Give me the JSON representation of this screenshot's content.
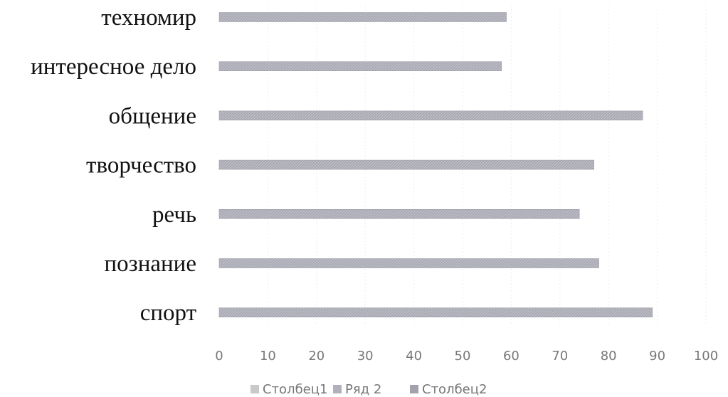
{
  "chart_data": {
    "type": "bar",
    "orientation": "horizontal",
    "title": "",
    "xlabel": "",
    "ylabel": "",
    "categories": [
      "техномир",
      "интересное дело",
      "общение",
      "творчество",
      "речь",
      "познание",
      "спорт"
    ],
    "series": [
      {
        "name": "Ряд 2",
        "color": "#a9a9b4",
        "values": [
          59,
          58,
          87,
          77,
          74,
          78,
          89
        ]
      }
    ],
    "xlim": [
      0,
      100
    ],
    "xticks": [
      "0",
      "10",
      "20",
      "30",
      "40",
      "50",
      "60",
      "70",
      "80",
      "90",
      "100"
    ],
    "grid": true,
    "legend": {
      "position": "bottom",
      "entries": [
        {
          "name": "Столбец1",
          "color": "#c9c9c9"
        },
        {
          "name": "Ряд 2",
          "color": "#b1b1bc"
        },
        {
          "name": "Столбец2",
          "color": "#a2a2ad"
        }
      ]
    }
  }
}
